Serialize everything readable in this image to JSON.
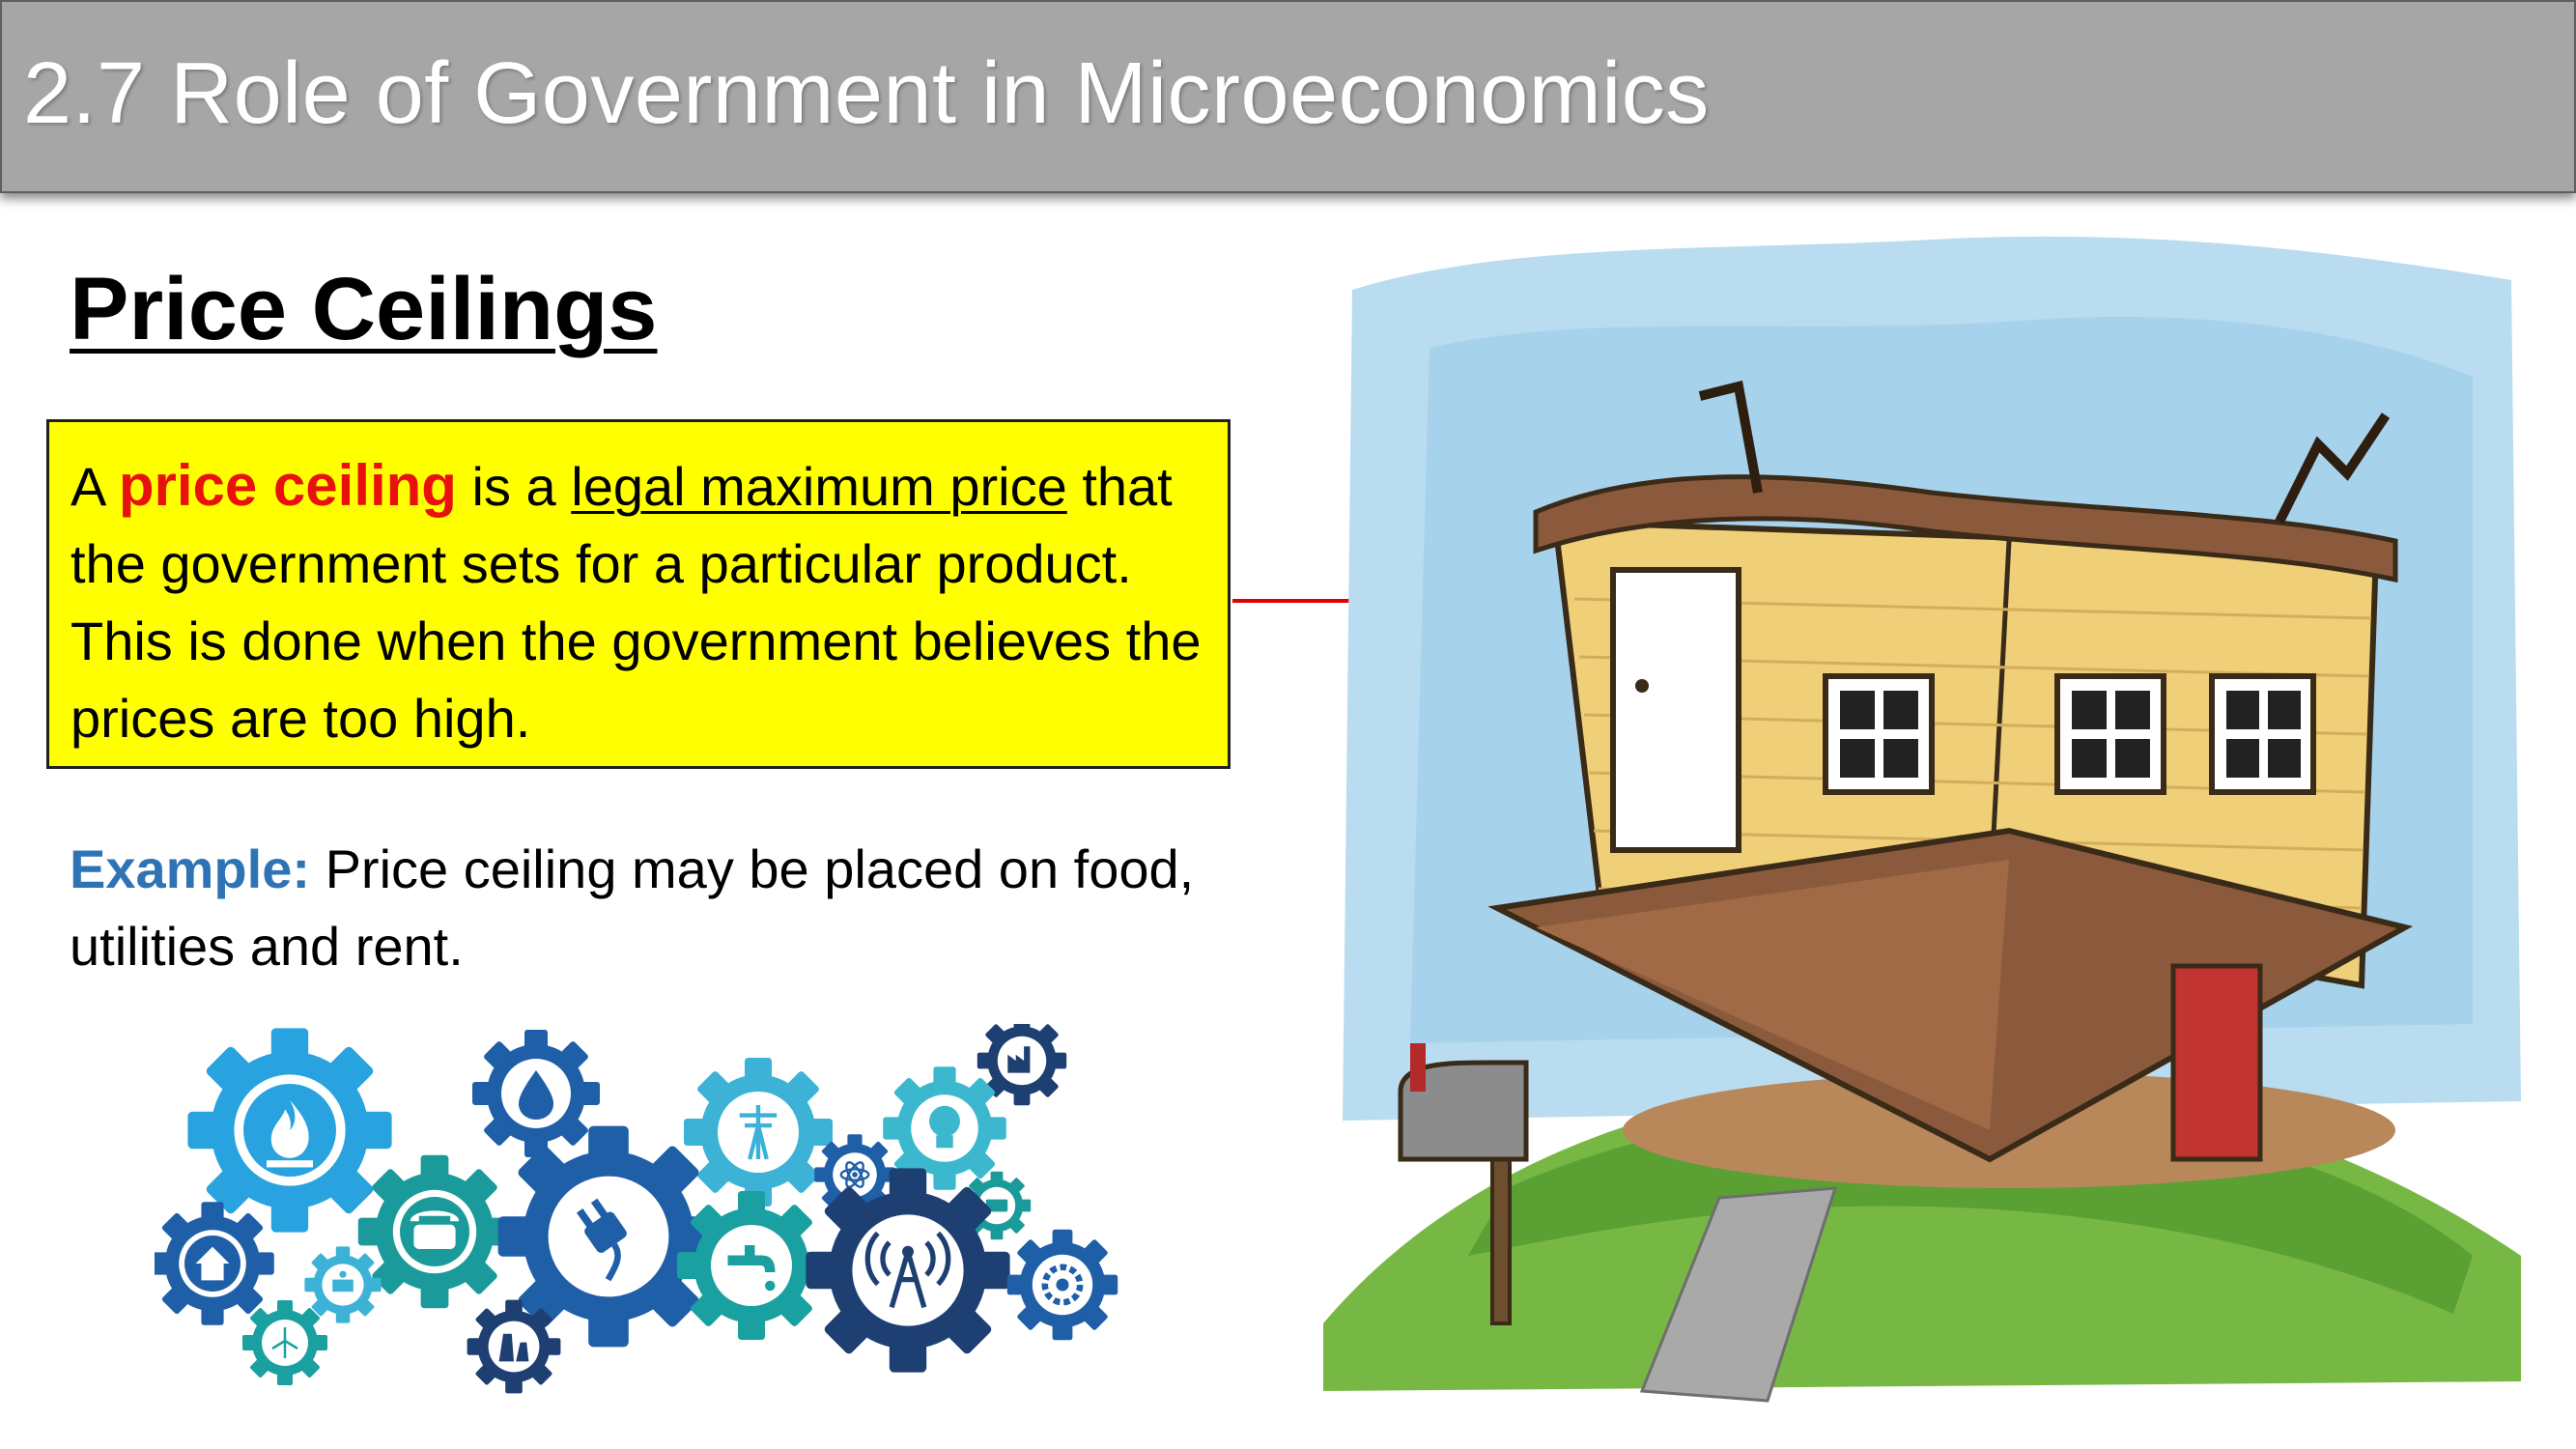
{
  "header": {
    "title": "2.7 Role of Government in Microeconomics"
  },
  "section": {
    "title": "Price Ceilings"
  },
  "definition": {
    "prefix": "A",
    "term": "price ceiling",
    "mid": "is a",
    "legal": "legal maximum price",
    "rest": "that the government sets for a particular product. This is done when the government believes the prices are too high."
  },
  "example": {
    "label": "Example:",
    "text": "Price ceiling may be placed on food, utilities and rent."
  },
  "colors": {
    "header_bg": "#a6a6a6",
    "definition_bg": "#ffff00",
    "term": "#e8110e",
    "example_label": "#2e74b5",
    "connector": "#e00000"
  },
  "icons": {
    "utility_gears": [
      "flame-icon",
      "water-drop-icon",
      "power-line-icon",
      "factory-icon",
      "light-bulb-icon",
      "atom-icon",
      "telephone-icon",
      "plug-icon",
      "faucet-icon",
      "radio-tower-icon",
      "battery-icon",
      "gear-icon",
      "home-icon",
      "solar-panel-icon",
      "wind-turbine-icon",
      "nuclear-plant-icon"
    ],
    "illustration": "upside-down-house"
  }
}
